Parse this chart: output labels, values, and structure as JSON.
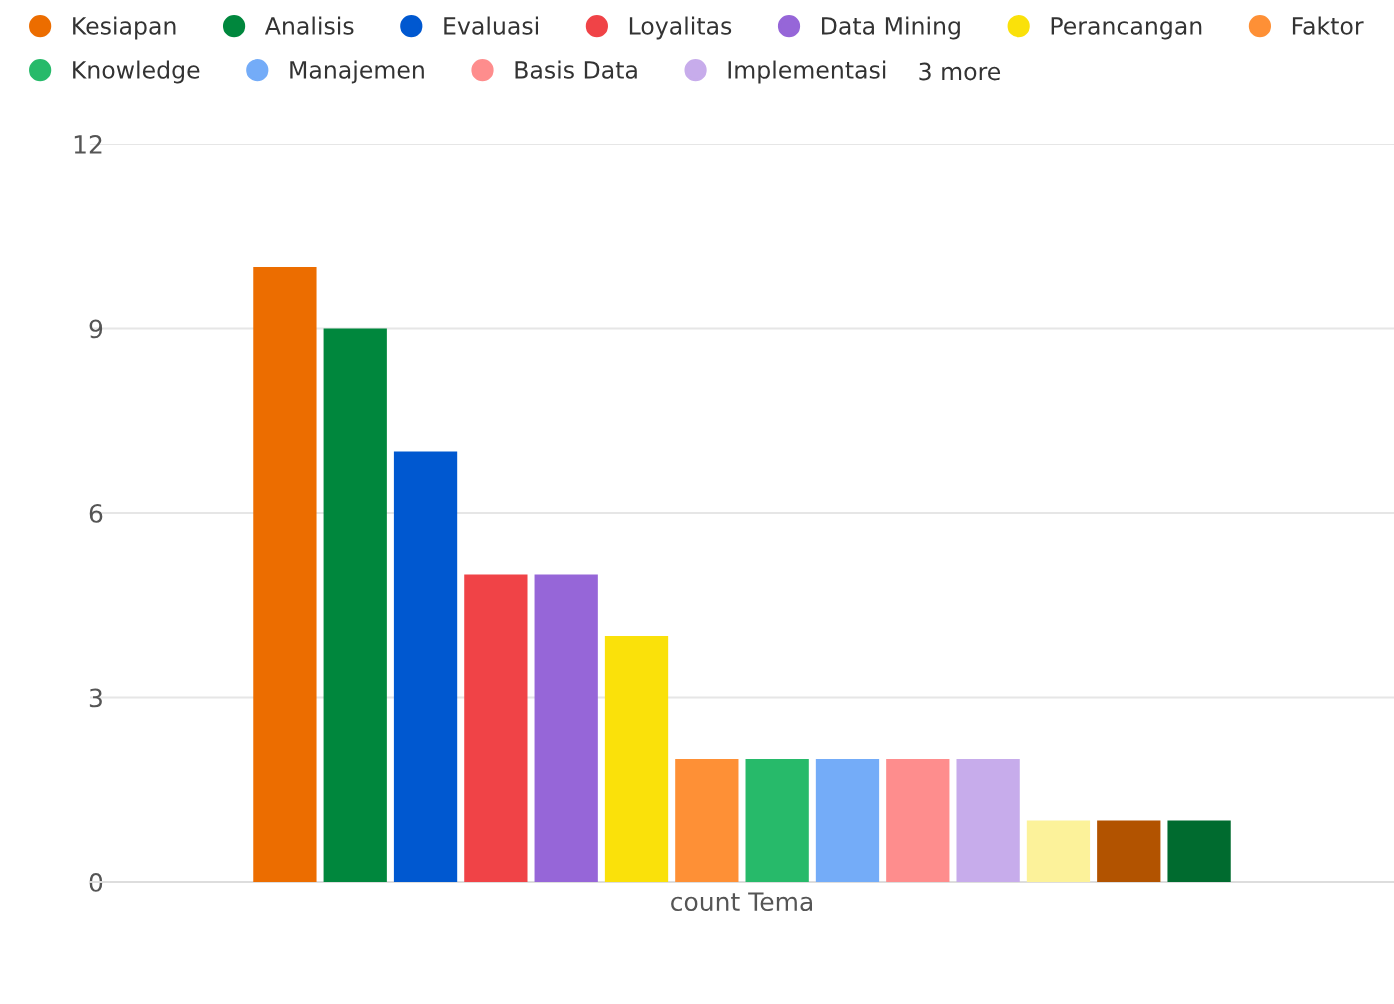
{
  "chart_data": {
    "type": "bar",
    "categories": [
      "count Tema"
    ],
    "ylim": [
      0,
      12
    ],
    "yticks": [
      0,
      3,
      6,
      9,
      12
    ],
    "grid": "y",
    "legend": "top left",
    "annotations": [
      "3 more"
    ],
    "series": [
      {
        "name": "Kesiapan",
        "color": "#ec6d00",
        "values": [
          10
        ]
      },
      {
        "name": "Analisis",
        "color": "#00873d",
        "values": [
          9
        ]
      },
      {
        "name": "Evaluasi",
        "color": "#0058d0",
        "values": [
          7
        ]
      },
      {
        "name": "Loyalitas",
        "color": "#f04347",
        "values": [
          5
        ]
      },
      {
        "name": "Data Mining",
        "color": "#9666d8",
        "values": [
          5
        ]
      },
      {
        "name": "Perancangan",
        "color": "#fae10a",
        "values": [
          4
        ]
      },
      {
        "name": "Faktor",
        "color": "#fe9036",
        "values": [
          2
        ]
      },
      {
        "name": "Knowledge",
        "color": "#27ba6a",
        "values": [
          2
        ]
      },
      {
        "name": "Manajemen",
        "color": "#74acf8",
        "values": [
          2
        ]
      },
      {
        "name": "Basis Data",
        "color": "#fe8d8d",
        "values": [
          2
        ]
      },
      {
        "name": "Implementasi",
        "color": "#c7aceb",
        "values": [
          2
        ]
      },
      {
        "color": "#fcf29a",
        "values": [
          1
        ]
      },
      {
        "color": "#b25300",
        "values": [
          1
        ]
      },
      {
        "color": "#006b2f",
        "values": [
          1
        ]
      }
    ]
  }
}
